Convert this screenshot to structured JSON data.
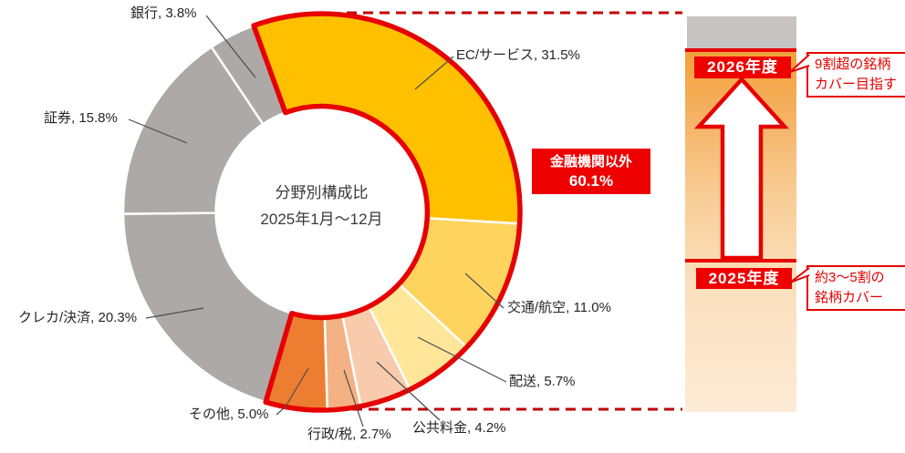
{
  "chart_data": {
    "type": "pie",
    "subtype": "donut",
    "title": "分野別構成比",
    "subtitle": "2025年1月〜12月",
    "unit": "%",
    "start_angle_deg": -20,
    "direction": "clockwise",
    "inner_radius_ratio": 0.533,
    "legend_position": "outside-labels",
    "segments": [
      {
        "id": "ec-services",
        "label": "EC/サービス",
        "value": 31.5,
        "color": "#FFC000",
        "group": "金融機関以外"
      },
      {
        "id": "transport-aviation",
        "label": "交通/航空",
        "value": 11.0,
        "color": "#FFD45E",
        "group": "金融機関以外"
      },
      {
        "id": "delivery",
        "label": "配送",
        "value": 5.7,
        "color": "#FFE699",
        "group": "金融機関以外"
      },
      {
        "id": "public-utilities",
        "label": "公共料金",
        "value": 4.2,
        "color": "#F8CBAD",
        "group": "金融機関以外"
      },
      {
        "id": "government-tax",
        "label": "行政/税",
        "value": 2.7,
        "color": "#F4B183",
        "group": "金融機関以外"
      },
      {
        "id": "others",
        "label": "その他",
        "value": 5.0,
        "color": "#ED7D31",
        "group": "金融機関以外"
      },
      {
        "id": "credit-card-payment",
        "label": "クレカ/決済",
        "value": 20.3,
        "color": "#ACA9A7",
        "group": "金融機関"
      },
      {
        "id": "securities",
        "label": "証券",
        "value": 15.8,
        "color": "#ACA9A7",
        "group": "金融機関"
      },
      {
        "id": "bank",
        "label": "銀行",
        "value": 3.8,
        "color": "#ACA9A7",
        "group": "金融機関"
      }
    ],
    "highlighted_group": {
      "label": "金融機関以外",
      "share_label": "60.1%",
      "outline_color": "#E60000"
    }
  },
  "badge": {
    "line1": "金融機関以外",
    "line2": "60.1%"
  },
  "roadmap": {
    "top_year_label": "2026年度",
    "top_note_line1": "9割超の銘柄",
    "top_note_line2": "カバー目指す",
    "bottom_year_label": "2025年度",
    "bottom_note_line1": "約3〜5割の",
    "bottom_note_line2": "銘柄カバー"
  },
  "colors": {
    "accent_red": "#E60000",
    "badge_red": "#EE0000",
    "dash_red": "#C00000",
    "grey_segment": "#ACA9A7",
    "bar_cap_grey": "#C6C3C2",
    "bar_gradient_top": "#F2A139",
    "bar_gradient_bottom": "#FCEBD6",
    "label_text": "#262626"
  }
}
